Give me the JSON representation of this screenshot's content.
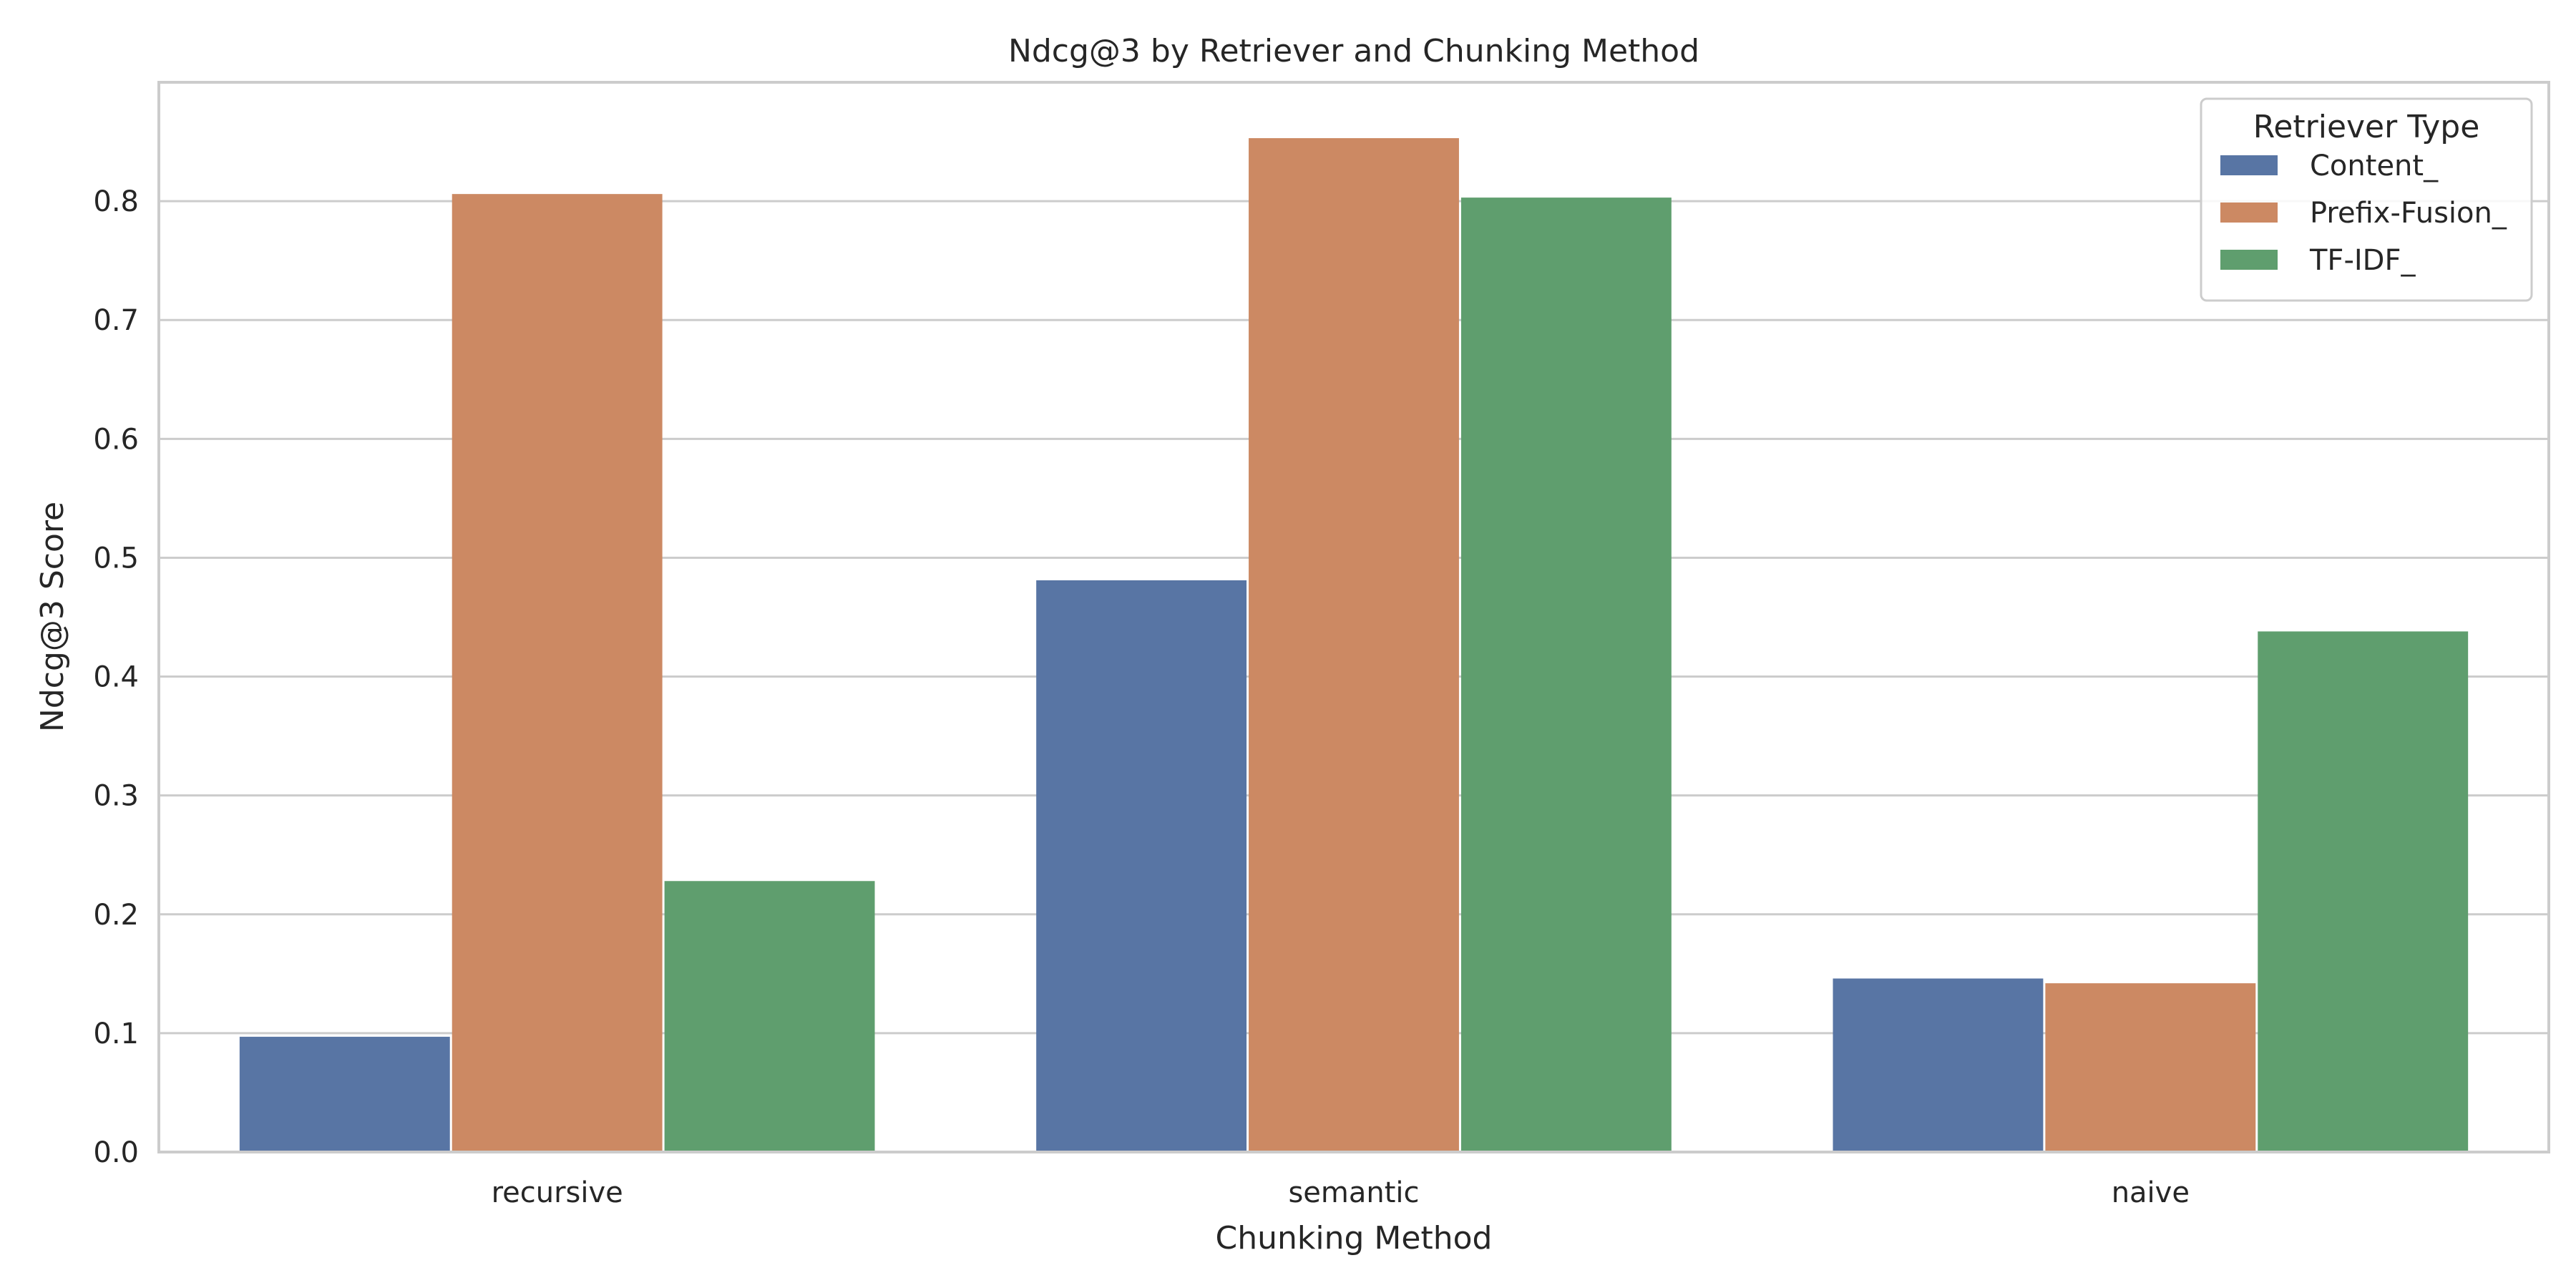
{
  "chart_data": {
    "type": "bar",
    "title": "Ndcg@3 by Retriever and Chunking Method",
    "xlabel": "Chunking Method",
    "ylabel": "Ndcg@3 Score",
    "categories": [
      "recursive",
      "semantic",
      "naive"
    ],
    "series": [
      {
        "name": "Content_",
        "color": "#5875a4",
        "values": [
          0.097,
          0.481,
          0.146
        ]
      },
      {
        "name": "Prefix-Fusion_",
        "color": "#cc8963",
        "values": [
          0.806,
          0.853,
          0.142
        ]
      },
      {
        "name": "TF-IDF_",
        "color": "#5f9e6e",
        "values": [
          0.228,
          0.803,
          0.438
        ]
      }
    ],
    "ylim": [
      0,
      0.9
    ],
    "yticks": [
      0.0,
      0.1,
      0.2,
      0.3,
      0.4,
      0.5,
      0.6,
      0.7,
      0.8
    ],
    "ytick_labels": [
      "0.0",
      "0.1",
      "0.2",
      "0.3",
      "0.4",
      "0.5",
      "0.6",
      "0.7",
      "0.8"
    ],
    "grid": true,
    "legend": {
      "title": "Retriever Type",
      "placement": "top-right"
    }
  }
}
